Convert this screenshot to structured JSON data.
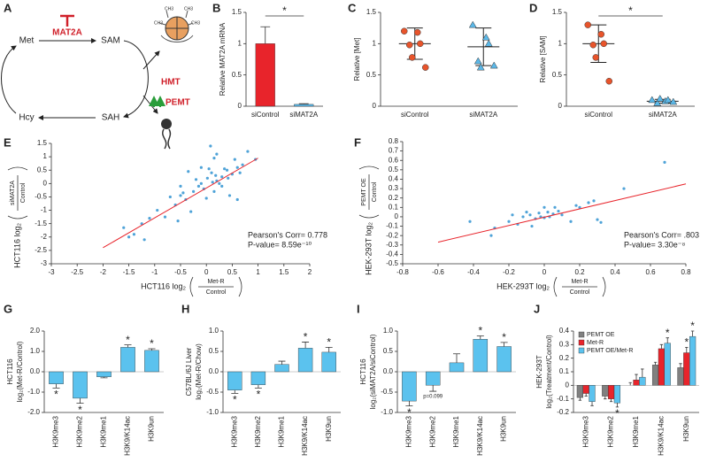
{
  "diagram": {
    "panel": "A",
    "nodes": {
      "met": "Met",
      "sam": "SAM",
      "hcy": "Hcy",
      "sah": "SAH"
    },
    "enzymes": {
      "mat2a": "MAT2A",
      "hmt": "HMT",
      "pemt": "PEMT"
    },
    "methyl_labels": [
      "CH3",
      "CH3",
      "CH3",
      "CH3"
    ]
  },
  "chart_data": [
    {
      "panel": "B",
      "type": "bar",
      "ylabel": "Relative MAT2A mRNA",
      "categories": [
        "siControl",
        "siMAT2A"
      ],
      "values": [
        1.0,
        0.03
      ],
      "errors": [
        0.27,
        0.01
      ],
      "colors": [
        "#e8242b",
        "#5bb8e8"
      ],
      "ylim": [
        0,
        1.5
      ],
      "yticks": [
        0,
        0.5,
        1,
        1.5
      ],
      "significance": "*"
    },
    {
      "panel": "C",
      "type": "dotplot",
      "ylabel": "Relative [Met]",
      "groups": [
        {
          "name": "siControl",
          "marker": "circle",
          "color": "#e8542b",
          "values": [
            1.2,
            1.18,
            1.0,
            0.98,
            0.78,
            0.62
          ],
          "mean": 1.0,
          "sd": 0.25
        },
        {
          "name": "siMAT2A",
          "marker": "triangle",
          "color": "#5bb8e8",
          "values": [
            1.3,
            1.1,
            1.0,
            0.72,
            0.62,
            0.65
          ],
          "mean": 0.95,
          "sd": 0.3
        }
      ],
      "ylim": [
        0,
        1.5
      ],
      "yticks": [
        0,
        0.5,
        1,
        1.5
      ]
    },
    {
      "panel": "D",
      "type": "dotplot",
      "ylabel": "Relative [SAM]",
      "groups": [
        {
          "name": "siControl",
          "marker": "circle",
          "color": "#e8542b",
          "values": [
            1.3,
            1.15,
            1.0,
            0.98,
            0.78,
            0.4
          ],
          "mean": 1.0,
          "sd": 0.3
        },
        {
          "name": "siMAT2A",
          "marker": "triangle",
          "color": "#5bb8e8",
          "values": [
            0.1,
            0.08,
            0.1,
            0.05,
            0.12,
            0.07
          ],
          "mean": 0.08,
          "sd": 0.03
        }
      ],
      "ylim": [
        0,
        1.5
      ],
      "yticks": [
        0,
        0.5,
        1,
        1.5
      ],
      "significance": "*"
    },
    {
      "panel": "E",
      "type": "scatter",
      "color": "#4fa3d8",
      "xlabel": {
        "prefix": "HCT116 log₂",
        "numerator": "Met-R",
        "denominator": "Control"
      },
      "ylabel": {
        "prefix": "HCT116 log₂",
        "numerator": "siMAT2A",
        "denominator": "Control"
      },
      "x": [
        -1.6,
        -1.5,
        -1.4,
        -1.2,
        -1.25,
        -1.1,
        -0.95,
        -0.8,
        -0.7,
        -0.6,
        -0.55,
        -0.5,
        -0.45,
        -0.4,
        -0.3,
        -0.25,
        -0.2,
        -0.15,
        -0.1,
        -0.05,
        0.0,
        0.02,
        0.05,
        0.08,
        0.1,
        0.12,
        0.15,
        0.18,
        0.2,
        0.25,
        0.3,
        0.3,
        0.35,
        0.4,
        0.42,
        0.45,
        0.5,
        0.55,
        0.6,
        0.65,
        0.7,
        0.8,
        0.95,
        -0.35,
        -0.5,
        0.2,
        0.15,
        -0.1,
        0.6
      ],
      "y": [
        -1.65,
        -2.0,
        -1.9,
        -2.1,
        -1.5,
        -1.3,
        -1.0,
        -1.25,
        -0.5,
        -0.8,
        -1.4,
        -0.45,
        -0.35,
        -0.6,
        -1.05,
        -0.3,
        0.15,
        -0.1,
        0.0,
        -0.2,
        -0.55,
        0.2,
        0.55,
        1.4,
        0.4,
        0.05,
        -0.3,
        0.3,
        0.1,
        0.0,
        0.25,
        -0.1,
        0.55,
        0.5,
        0.2,
        -0.45,
        0.35,
        0.9,
        0.6,
        0.4,
        0.7,
        1.2,
        0.9,
        0.45,
        -0.1,
        1.1,
        0.95,
        0.6,
        -0.6
      ],
      "fit": {
        "x": [
          -2,
          1
        ],
        "y": [
          -2.4,
          0.95
        ],
        "color": "#e8242b"
      },
      "annotations": [
        "Pearson's Corr= 0.778",
        "P-value= 8.59e⁻¹⁰"
      ],
      "xlim": [
        -3,
        2
      ],
      "xticks": [
        -3,
        -2.5,
        -2,
        -1.5,
        -1,
        -0.5,
        0,
        0.5,
        1,
        1.5,
        2
      ],
      "ylim": [
        -3,
        1.5
      ],
      "yticks": [
        -3,
        -2.5,
        -2,
        -1.5,
        -1,
        -0.5,
        0,
        0.5,
        1,
        1.5
      ]
    },
    {
      "panel": "F",
      "type": "scatter",
      "color": "#4fa3d8",
      "xlabel": {
        "prefix": "HEK-293T log₂",
        "numerator": "Met-R",
        "denominator": "Control"
      },
      "ylabel": {
        "prefix": "HEK-293T log₂",
        "numerator": "PEMT OE",
        "denominator": "Control"
      },
      "x": [
        -0.42,
        -0.3,
        -0.28,
        -0.2,
        -0.18,
        -0.15,
        -0.12,
        -0.1,
        -0.08,
        -0.05,
        -0.03,
        0.0,
        0.0,
        0.02,
        0.03,
        0.05,
        0.06,
        0.08,
        0.1,
        0.15,
        0.18,
        0.2,
        0.25,
        0.28,
        0.3,
        0.32,
        0.45,
        0.68,
        -0.02,
        -0.07
      ],
      "y": [
        -0.05,
        -0.2,
        -0.12,
        -0.05,
        0.02,
        -0.08,
        0.0,
        0.05,
        0.02,
        -0.02,
        0.04,
        0.1,
        -0.01,
        0.05,
        0.0,
        0.03,
        0.1,
        0.06,
        0.02,
        -0.05,
        0.12,
        0.1,
        0.15,
        0.17,
        -0.03,
        -0.06,
        0.3,
        0.58,
        0.0,
        -0.1
      ],
      "fit": {
        "x": [
          -0.6,
          0.8
        ],
        "y": [
          -0.27,
          0.35
        ],
        "color": "#e8242b"
      },
      "annotations": [
        "Pearson's Corr= .803",
        "P-value= 3.30e⁻⁸"
      ],
      "xlim": [
        -0.8,
        0.8
      ],
      "xticks": [
        -0.8,
        -0.6,
        -0.4,
        -0.2,
        0,
        0.2,
        0.4,
        0.6,
        0.8
      ],
      "ylim": [
        -0.5,
        0.8
      ],
      "yticks": [
        -0.5,
        -0.4,
        -0.3,
        -0.2,
        -0.1,
        0,
        0.1,
        0.2,
        0.3,
        0.4,
        0.5,
        0.6,
        0.7,
        0.8
      ]
    },
    {
      "panel": "G",
      "type": "bar",
      "ylabel": [
        "HCT116",
        "log₂(Met-R/Control)"
      ],
      "color": "#5bc2ee",
      "categories": [
        "H3K9me3",
        "H3K9me2",
        "H3K9me1",
        "H3K9/K14ac",
        "H3K9un"
      ],
      "values": [
        -0.6,
        -1.3,
        -0.25,
        1.2,
        1.05
      ],
      "errors": [
        0.2,
        0.25,
        0.05,
        0.12,
        0.08
      ],
      "significance": [
        "*",
        "*",
        null,
        "*",
        "*"
      ],
      "ylim": [
        -2,
        2
      ],
      "yticks": [
        {
          "value": -2,
          "label": "-2.0"
        },
        {
          "value": -1,
          "label": "-1.0"
        },
        {
          "value": 0,
          "label": "0.0"
        },
        {
          "value": 1,
          "label": "1.0"
        },
        {
          "value": 2,
          "label": "2.0"
        }
      ]
    },
    {
      "panel": "H",
      "type": "bar",
      "ylabel": [
        "C57BL/6J Liver",
        "log₂(Met-R/Chow)"
      ],
      "color": "#5bc2ee",
      "categories": [
        "H3K9me3",
        "H3K9me2",
        "H3K9me1",
        "H3K9/K14ac",
        "H3K9un"
      ],
      "values": [
        -0.45,
        -0.32,
        0.18,
        0.58,
        0.48
      ],
      "errors": [
        0.08,
        0.08,
        0.08,
        0.15,
        0.12
      ],
      "significance": [
        "*",
        "*",
        null,
        "*",
        "*"
      ],
      "ylim": [
        -1,
        1
      ],
      "yticks": [
        {
          "value": -1,
          "label": "-1.0"
        },
        -0.5,
        {
          "value": 0,
          "label": "0.0"
        },
        0.5,
        {
          "value": 1,
          "label": "1.0"
        }
      ]
    },
    {
      "panel": "I",
      "type": "bar",
      "ylabel": [
        "HCT116",
        "log₂(siMAT2A/siControl)"
      ],
      "color": "#5bc2ee",
      "categories": [
        "H3K9me3",
        "H3K9me2",
        "H3K9me1",
        "H3K9/K14ac",
        "H3K9un"
      ],
      "values": [
        -0.72,
        -0.33,
        0.22,
        0.8,
        0.62
      ],
      "errors": [
        0.12,
        0.15,
        0.22,
        0.08,
        0.1
      ],
      "significance": [
        "*",
        "p=0.099",
        null,
        "*",
        "*"
      ],
      "ylim": [
        -1,
        1
      ],
      "yticks": [
        {
          "value": -1,
          "label": "-1.0"
        },
        -0.5,
        {
          "value": 0,
          "label": "0.0"
        },
        0.5,
        {
          "value": 1,
          "label": "1.0"
        }
      ]
    },
    {
      "panel": "J",
      "type": "bar",
      "ylabel": [
        "HEK-293T",
        "log₂(Treatment/Control)"
      ],
      "legend": "upper-left",
      "categories": [
        "H3K9me3",
        "H3K9me2",
        "H3K9me1",
        "H3K9/K14ac",
        "H3K9un"
      ],
      "series": [
        {
          "name": "PEMT OE",
          "color": "#808080",
          "values": [
            -0.09,
            -0.08,
            0.0,
            0.15,
            0.13
          ],
          "errors": [
            0.02,
            0.02,
            0.02,
            0.02,
            0.03
          ]
        },
        {
          "name": "Met-R",
          "color": "#e8242b",
          "values": [
            -0.06,
            -0.1,
            0.04,
            0.27,
            0.24
          ],
          "errors": [
            0.02,
            0.02,
            0.04,
            0.03,
            0.04
          ],
          "significance": [
            null,
            null,
            null,
            null,
            "*"
          ]
        },
        {
          "name": "PEMT OE/Met-R",
          "color": "#5bc2ee",
          "values": [
            -0.12,
            -0.13,
            0.06,
            0.31,
            0.36
          ],
          "errors": [
            0.03,
            0.03,
            0.06,
            0.04,
            0.04
          ],
          "significance": [
            null,
            "*",
            null,
            "*",
            "*"
          ]
        }
      ],
      "ylim": [
        -0.2,
        0.4
      ],
      "yticks": [
        -0.2,
        -0.1,
        0,
        0.1,
        0.2,
        0.3,
        0.4
      ]
    }
  ]
}
